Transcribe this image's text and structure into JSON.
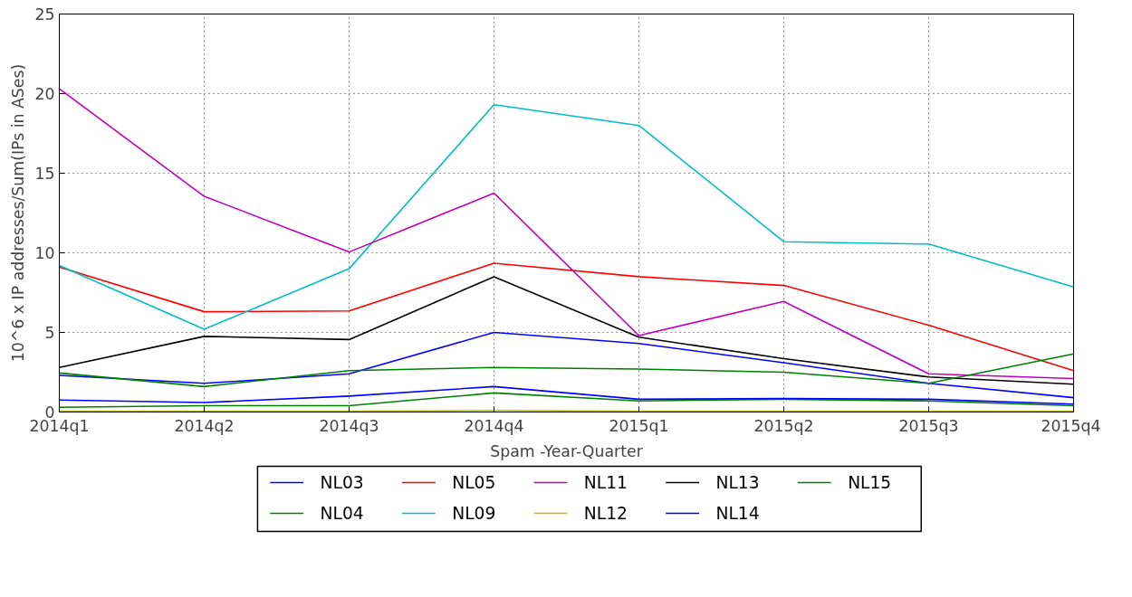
{
  "chart_data": {
    "type": "line",
    "xlabel": "Spam -Year-Quarter",
    "ylabel": "10^6 x IP addresses/Sum(IPs in ASes)",
    "categories": [
      "2014q1",
      "2014q2",
      "2014q3",
      "2014q4",
      "2015q1",
      "2015q2",
      "2015q3",
      "2015q4"
    ],
    "ylim": [
      0,
      25
    ],
    "yticks": [
      0,
      5,
      10,
      15,
      20,
      25
    ],
    "grid": true,
    "legend": "bottom",
    "line_style": "solid",
    "marker": "none",
    "series": [
      {
        "name": "NL03",
        "color": "#0000ff",
        "values": [
          2.3,
          1.8,
          2.4,
          5.0,
          4.3,
          3.1,
          1.8,
          0.9
        ]
      },
      {
        "name": "NL04",
        "color": "#008000",
        "values": [
          0.3,
          0.4,
          0.4,
          1.2,
          0.7,
          0.8,
          0.7,
          0.4
        ]
      },
      {
        "name": "NL05",
        "color": "#ff0000",
        "values": [
          9.1,
          6.3,
          6.35,
          9.35,
          8.5,
          7.95,
          5.45,
          2.6
        ]
      },
      {
        "name": "NL09",
        "color": "#00bfbf",
        "values": [
          9.2,
          5.2,
          9.0,
          19.3,
          18.0,
          10.7,
          10.55,
          7.85
        ]
      },
      {
        "name": "NL11",
        "color": "#bf00bf",
        "values": [
          20.3,
          13.55,
          10.05,
          13.75,
          4.8,
          6.95,
          2.4,
          2.1
        ]
      },
      {
        "name": "NL12",
        "color": "#bfbf00",
        "values": [
          0.05,
          0.05,
          0.05,
          0.1,
          0.05,
          0.05,
          0.05,
          0.05
        ]
      },
      {
        "name": "NL13",
        "color": "#000000",
        "values": [
          2.8,
          4.75,
          4.55,
          8.5,
          4.7,
          3.35,
          2.2,
          1.75
        ]
      },
      {
        "name": "NL14",
        "color": "#0000ff",
        "values": [
          0.75,
          0.6,
          1.0,
          1.6,
          0.8,
          0.85,
          0.8,
          0.5
        ]
      },
      {
        "name": "NL15",
        "color": "#008000",
        "values": [
          2.45,
          1.6,
          2.6,
          2.8,
          2.7,
          2.5,
          1.8,
          3.65
        ]
      }
    ]
  }
}
